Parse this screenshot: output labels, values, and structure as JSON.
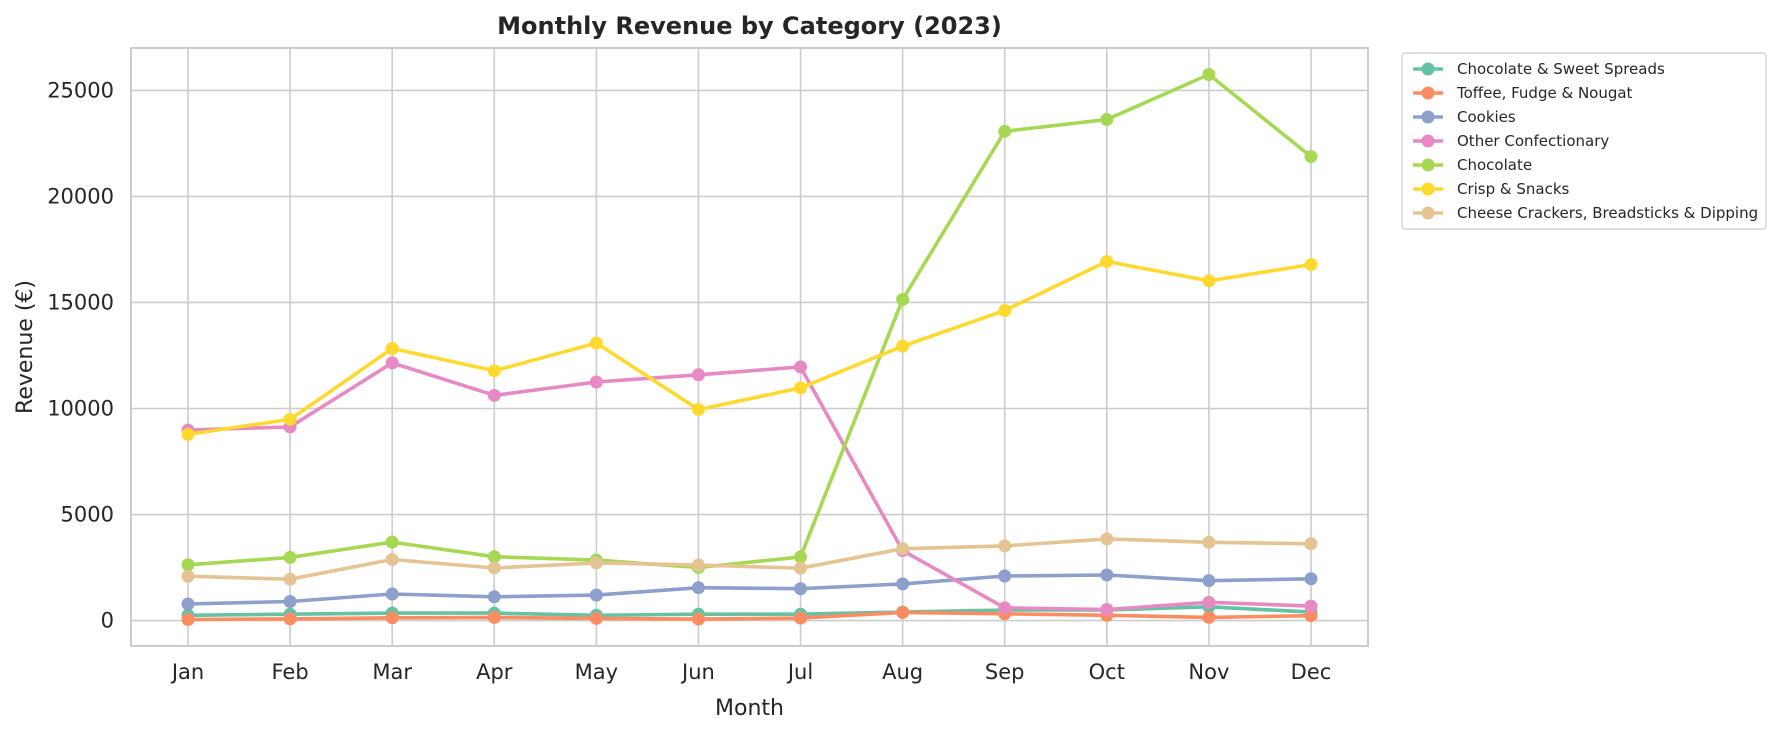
{
  "chart_data": {
    "type": "line",
    "title": "Monthly Revenue by Category (2023)",
    "xlabel": "Month",
    "ylabel": "Revenue (€)",
    "categories": [
      "Jan",
      "Feb",
      "Mar",
      "Apr",
      "May",
      "Jun",
      "Jul",
      "Aug",
      "Sep",
      "Oct",
      "Nov",
      "Dec"
    ],
    "ylim": [
      -1200,
      27000
    ],
    "yticks": [
      0,
      5000,
      10000,
      15000,
      20000,
      25000
    ],
    "grid": true,
    "legend_position": "outside-top-right",
    "series": [
      {
        "name": "Chocolate & Sweet Spreads",
        "color": "#66c2a5",
        "values": [
          250,
          300,
          350,
          350,
          250,
          300,
          300,
          400,
          500,
          500,
          650,
          400
        ]
      },
      {
        "name": "Toffee, Fudge & Nougat",
        "color": "#fc8d62",
        "values": [
          50,
          80,
          130,
          150,
          100,
          70,
          120,
          380,
          320,
          250,
          150,
          230
        ]
      },
      {
        "name": "Cookies",
        "color": "#8da0cb",
        "values": [
          780,
          900,
          1250,
          1120,
          1200,
          1550,
          1500,
          1730,
          2100,
          2150,
          1880,
          1970
        ]
      },
      {
        "name": "Other Confectionary",
        "color": "#e78ac3",
        "values": [
          8980,
          9130,
          12150,
          10620,
          11250,
          11590,
          11960,
          3300,
          600,
          520,
          860,
          680
        ]
      },
      {
        "name": "Chocolate",
        "color": "#a6d854",
        "values": [
          2630,
          2980,
          3700,
          3010,
          2850,
          2500,
          3000,
          15140,
          23070,
          23630,
          25750,
          21880
        ]
      },
      {
        "name": "Crisp & Snacks",
        "color": "#ffd92f",
        "values": [
          8780,
          9490,
          12830,
          11780,
          13090,
          9950,
          10970,
          12940,
          14620,
          16930,
          16020,
          16790
        ]
      },
      {
        "name": "Cheese Crackers, Breadsticks & Dipping",
        "color": "#e5c494",
        "values": [
          2090,
          1950,
          2880,
          2480,
          2720,
          2620,
          2470,
          3390,
          3520,
          3850,
          3690,
          3620
        ]
      }
    ]
  }
}
